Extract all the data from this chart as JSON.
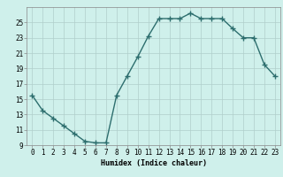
{
  "x": [
    0,
    1,
    2,
    3,
    4,
    5,
    6,
    7,
    8,
    9,
    10,
    11,
    12,
    13,
    14,
    15,
    16,
    17,
    18,
    19,
    20,
    21,
    22,
    23
  ],
  "y": [
    15.5,
    13.5,
    12.5,
    11.5,
    10.5,
    9.5,
    9.3,
    9.3,
    15.5,
    18.0,
    20.5,
    23.2,
    25.5,
    25.5,
    25.5,
    26.2,
    25.5,
    25.5,
    25.5,
    24.2,
    23.0,
    23.0,
    19.5,
    18.0
  ],
  "line_color": "#2d6e6e",
  "marker": "+",
  "markersize": 4,
  "linewidth": 1.0,
  "markeredgewidth": 1.0,
  "xlabel": "Humidex (Indice chaleur)",
  "bg_color": "#cff0eb",
  "grid_color": "#b0ceca",
  "ylim": [
    9,
    27
  ],
  "xlim": [
    -0.5,
    23.5
  ],
  "yticks": [
    9,
    11,
    13,
    15,
    17,
    19,
    21,
    23,
    25
  ],
  "xtick_labels": [
    "0",
    "1",
    "2",
    "3",
    "4",
    "5",
    "6",
    "7",
    "8",
    "9",
    "10",
    "11",
    "12",
    "13",
    "14",
    "15",
    "16",
    "17",
    "18",
    "19",
    "20",
    "21",
    "22",
    "23"
  ],
  "xlabel_fontsize": 6.0,
  "tick_fontsize": 5.5
}
